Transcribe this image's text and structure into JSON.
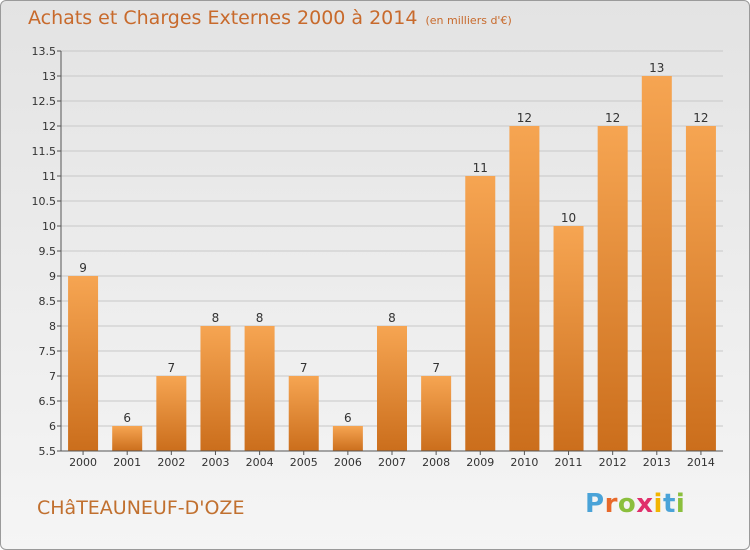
{
  "title": "Achats et Charges Externes 2000 à 2014",
  "title_unit": "(en milliers d'€)",
  "commune": "CHâTEAUNEUF-D'OZE",
  "brand": {
    "letters": [
      "P",
      "r",
      "o",
      "x",
      "i",
      "t",
      "i"
    ],
    "colors": [
      "#4aa3d8",
      "#e8692a",
      "#8bbf3d",
      "#e02f6b",
      "#f2b400",
      "#4aa3d8",
      "#8bbf3d"
    ]
  },
  "colors": {
    "bar_top": "#f6a552",
    "bar_bottom": "#cb6e1c",
    "grid": "#c8c8c8",
    "axis": "#555555",
    "text": "#333333"
  },
  "chart_data": {
    "type": "bar",
    "categories": [
      "2000",
      "2001",
      "2002",
      "2003",
      "2004",
      "2005",
      "2006",
      "2007",
      "2008",
      "2009",
      "2010",
      "2011",
      "2012",
      "2013",
      "2014"
    ],
    "values": [
      9,
      6,
      7,
      8,
      8,
      7,
      6,
      8,
      7,
      11,
      12,
      10,
      12,
      13,
      12
    ],
    "data_labels": [
      "9",
      "6",
      "7",
      "8",
      "8",
      "7",
      "6",
      "8",
      "7",
      "11",
      "12",
      "10",
      "12",
      "13",
      "12"
    ],
    "ylim": [
      5.5,
      13.5
    ],
    "yticks": [
      5.5,
      6,
      6.5,
      7,
      7.5,
      8,
      8.5,
      9,
      9.5,
      10,
      10.5,
      11,
      11.5,
      12,
      12.5,
      13,
      13.5
    ],
    "ytick_labels": [
      "5.5",
      "6",
      "6.5",
      "7",
      "7.5",
      "8",
      "8.5",
      "9",
      "9.5",
      "10",
      "10.5",
      "11",
      "11.5",
      "12",
      "12.5",
      "13",
      "13.5"
    ],
    "grid": true,
    "xlabel": "",
    "ylabel": ""
  }
}
